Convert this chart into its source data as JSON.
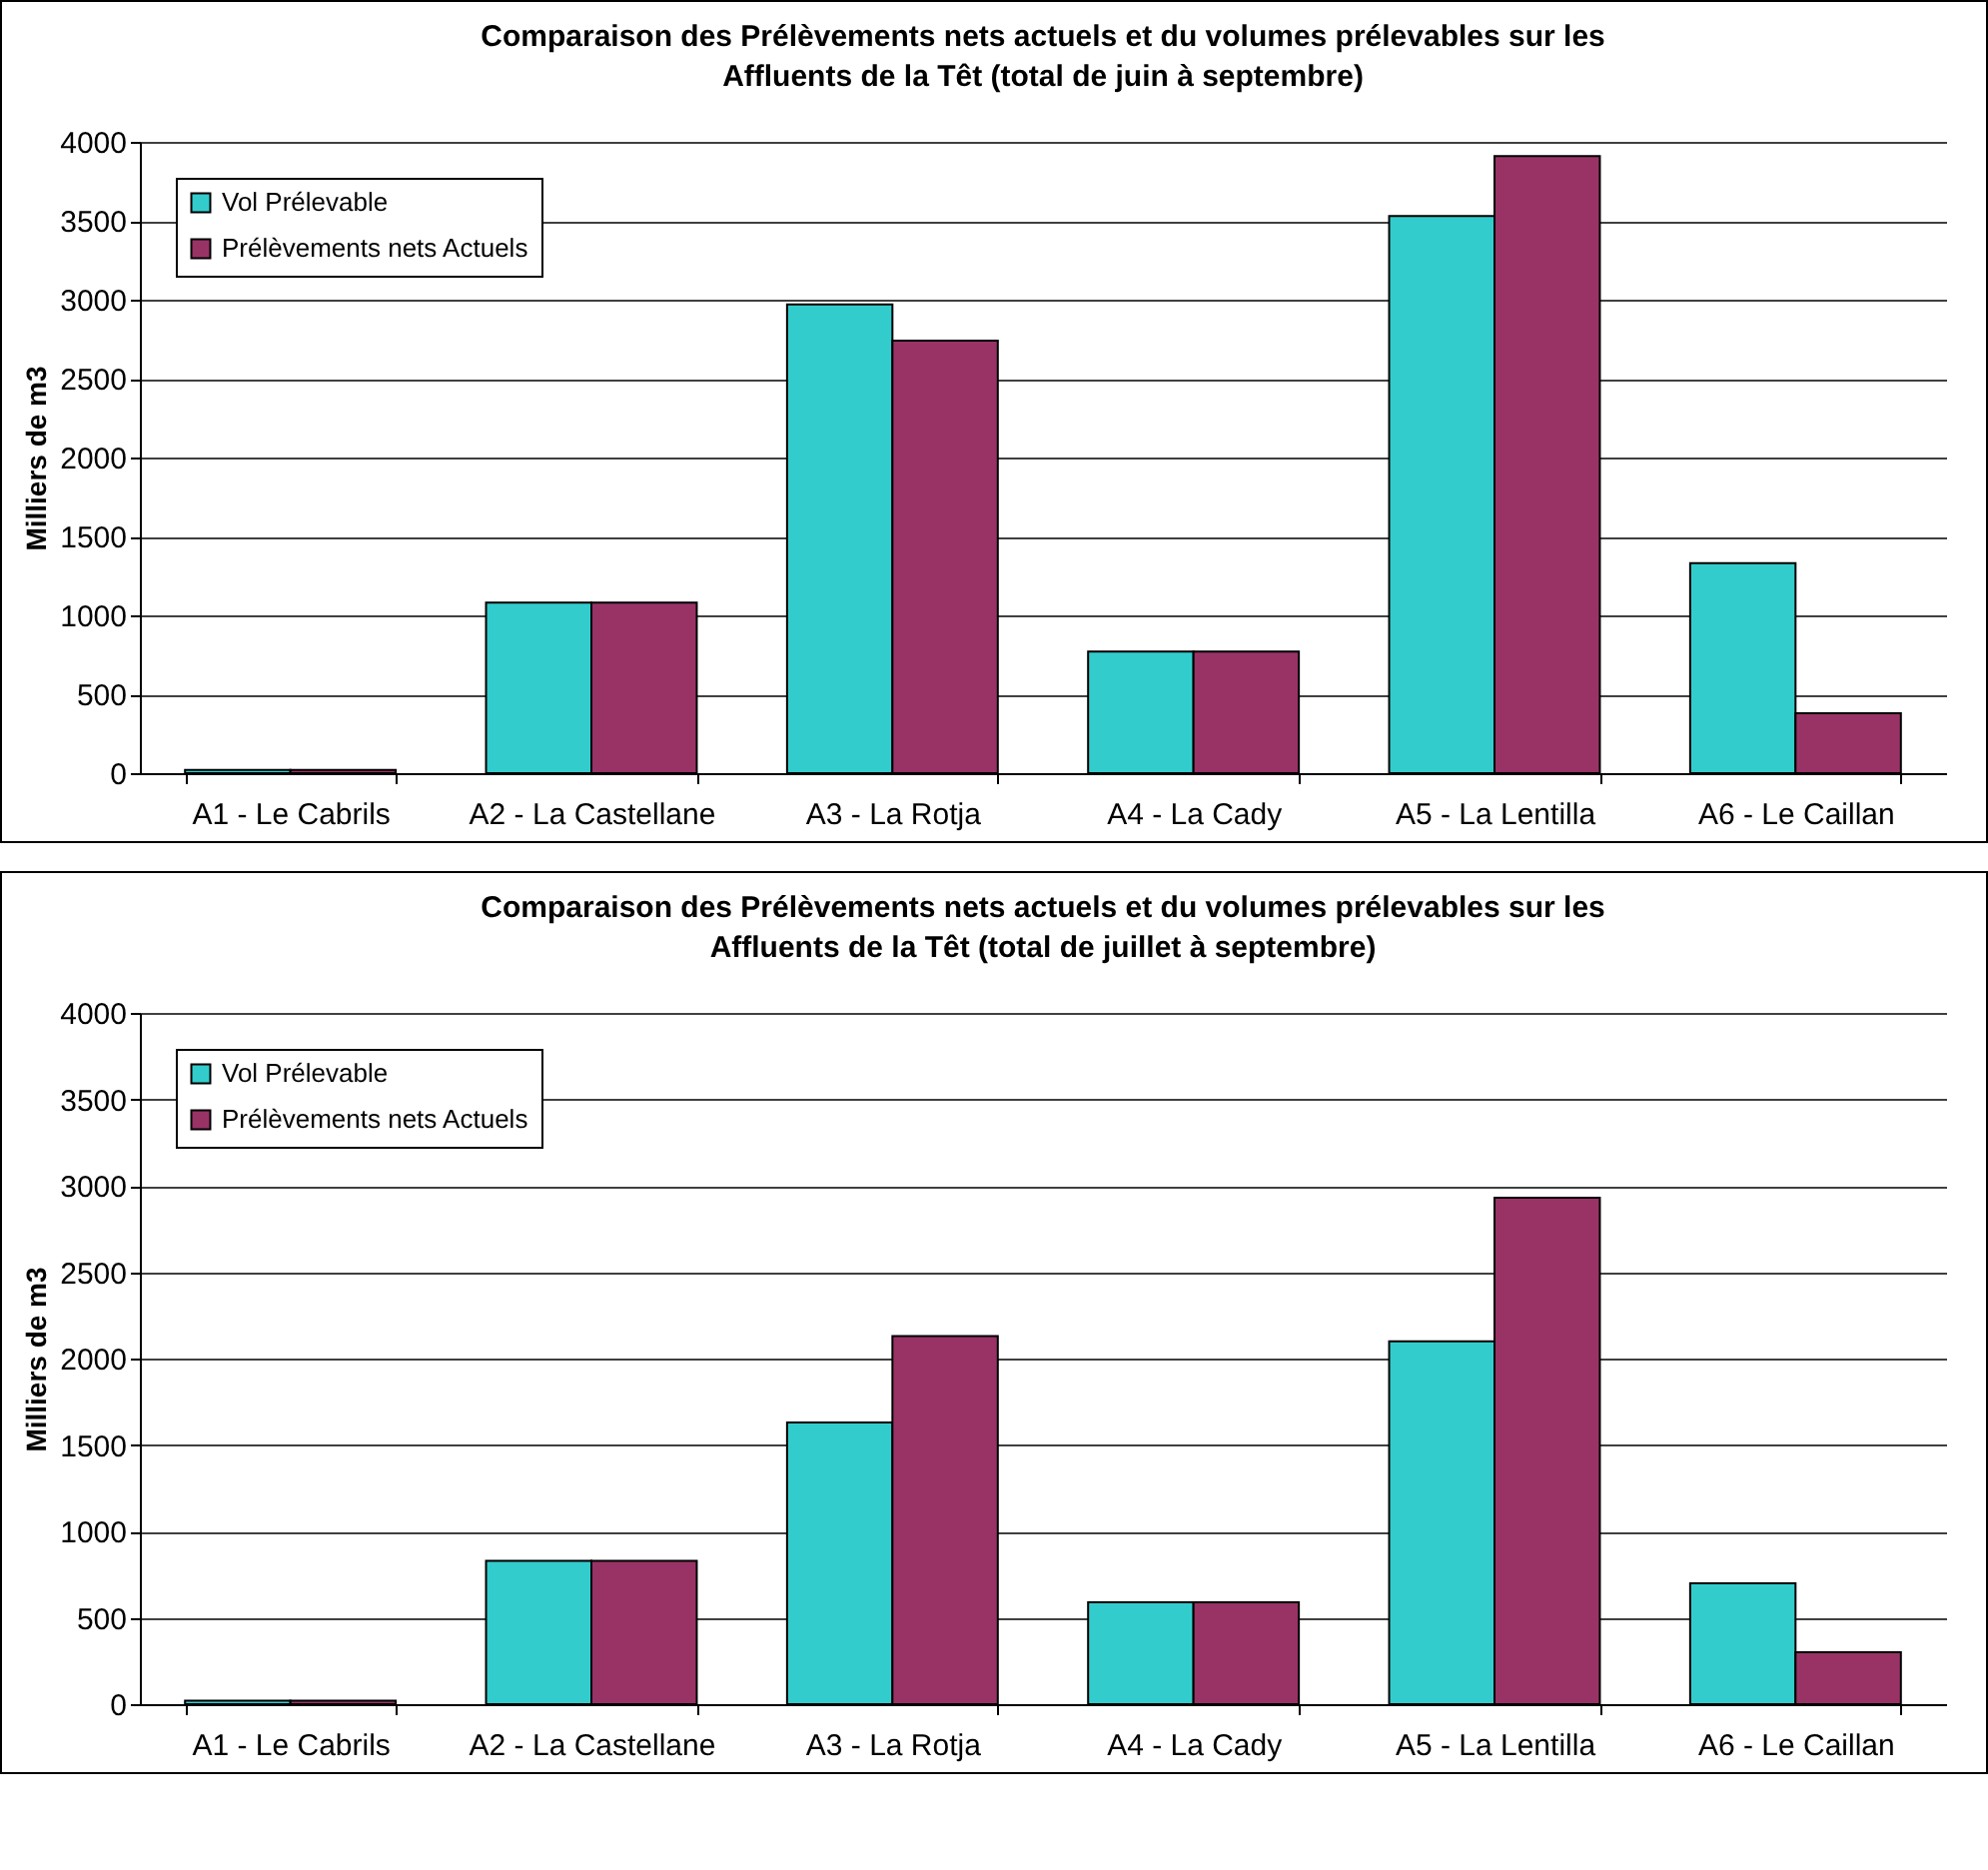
{
  "chart_data": [
    {
      "type": "bar",
      "title": "Comparaison des Prélèvements nets actuels et du volumes prélevables sur les Affluents de la Têt (total de juin à septembre)",
      "ylabel": "Milliers de m3",
      "categories": [
        "A1 - Le Cabrils",
        "A2 - La Castellane",
        "A3 - La Rotja",
        "A4 - La Cady",
        "A5 - La Lentilla",
        "A6 - Le Caillan"
      ],
      "series": [
        {
          "name": "Vol Prélevable",
          "color": "#33cccc",
          "values": [
            20,
            1080,
            2970,
            770,
            3530,
            1330
          ]
        },
        {
          "name": "Prélèvements nets Actuels",
          "color": "#993366",
          "values": [
            20,
            1080,
            2740,
            770,
            3910,
            380
          ]
        }
      ],
      "ylim": [
        0,
        4000
      ],
      "yticks": [
        0,
        500,
        1000,
        1500,
        2000,
        2500,
        3000,
        3500,
        4000
      ],
      "grid": "y",
      "legend": "top left"
    },
    {
      "type": "bar",
      "title": "Comparaison des Prélèvements nets actuels et du volumes prélevables sur les Affluents de la Têt (total de juillet à septembre)",
      "ylabel": "Milliers de m3",
      "categories": [
        "A1 - Le Cabrils",
        "A2 - La Castellane",
        "A3 - La Rotja",
        "A4 - La Cady",
        "A5 - La Lentilla",
        "A6 - Le Caillan"
      ],
      "series": [
        {
          "name": "Vol Prélevable",
          "color": "#33cccc",
          "values": [
            20,
            830,
            1630,
            590,
            2100,
            700
          ]
        },
        {
          "name": "Prélèvements nets Actuels",
          "color": "#993366",
          "values": [
            20,
            830,
            2130,
            590,
            2930,
            300
          ]
        }
      ],
      "ylim": [
        0,
        4000
      ],
      "yticks": [
        0,
        500,
        1000,
        1500,
        2000,
        2500,
        3000,
        3500,
        4000
      ],
      "grid": "y",
      "legend": "top left"
    }
  ]
}
